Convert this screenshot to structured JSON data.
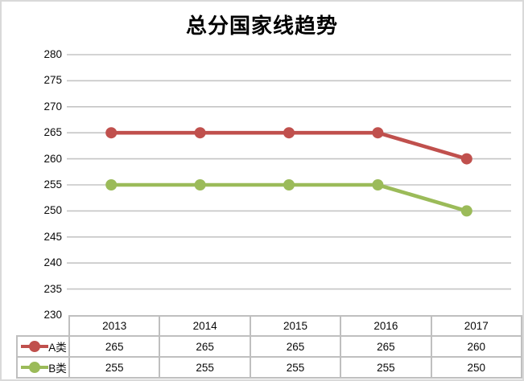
{
  "title": "总分国家线趋势",
  "colors": {
    "series_a": "#c0504d",
    "series_b": "#9bbb59",
    "gridline": "#c5c5c5",
    "table_border": "#bfbfbf",
    "canvas_border": "#d9d9d9",
    "text": "#0a0a0a"
  },
  "chart_data": {
    "type": "line",
    "title": "总分国家线趋势",
    "categories": [
      "2013",
      "2014",
      "2015",
      "2016",
      "2017"
    ],
    "series": [
      {
        "name": "A类",
        "values": [
          265,
          265,
          265,
          265,
          260
        ],
        "color": "#c0504d"
      },
      {
        "name": "B类",
        "values": [
          255,
          255,
          255,
          255,
          250
        ],
        "color": "#9bbb59"
      }
    ],
    "xlabel": "",
    "ylabel": "",
    "ylim": [
      230,
      280
    ],
    "ytick_step": 5,
    "yticks": [
      280,
      275,
      270,
      265,
      260,
      255,
      250,
      245,
      240,
      235,
      230
    ],
    "grid": true,
    "legend_position": "data-table-left",
    "markers": "circle"
  }
}
